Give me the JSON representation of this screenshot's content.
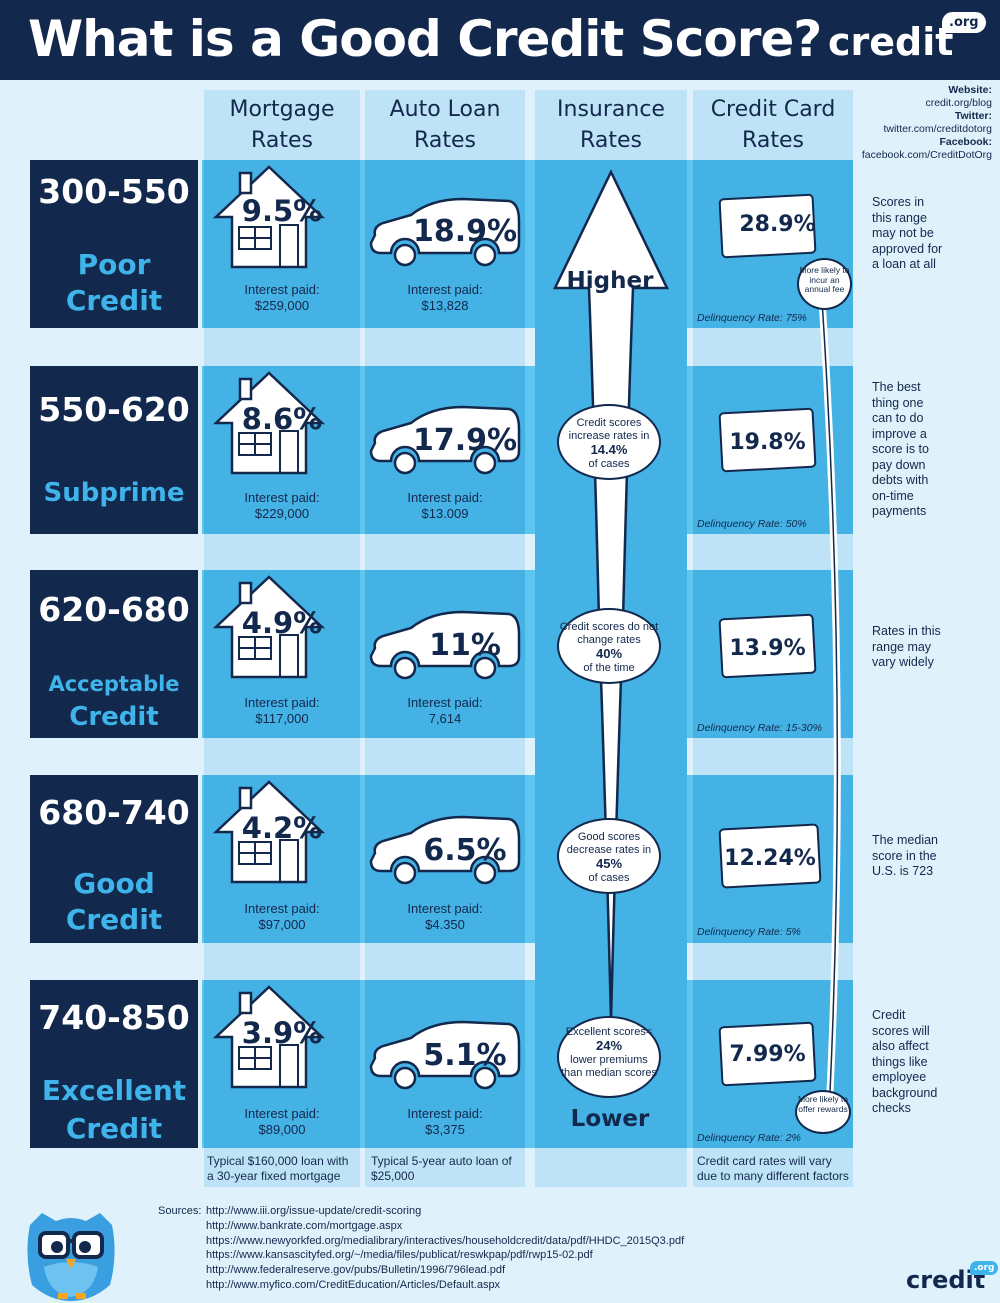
{
  "title": "What is a Good Credit Score?",
  "logo": {
    "word": "credit",
    "tld": ".org"
  },
  "social": {
    "website_label": "Website:",
    "website": "credit.org/blog",
    "twitter_label": "Twitter:",
    "twitter": "twitter.com/creditdotorg",
    "facebook_label": "Facebook:",
    "facebook": "facebook.com/CreditDotOrg"
  },
  "columns": [
    {
      "line1": "Mortgage",
      "line2": "Rates"
    },
    {
      "line1": "Auto Loan",
      "line2": "Rates"
    },
    {
      "line1": "Insurance",
      "line2": "Rates"
    },
    {
      "line1": "Credit Card",
      "line2": "Rates"
    }
  ],
  "tiers": [
    {
      "range": "300-550",
      "label1": "Poor",
      "label2": "Credit",
      "mortgage": "9.5%",
      "mortgage_paid_label": "Interest paid:",
      "mortgage_paid": "$259,000",
      "auto": "18.9%",
      "auto_paid_label": "Interest paid:",
      "auto_paid": "$13,828",
      "card": "28.9%",
      "delinquency": "Delinquency Rate: 75%",
      "note": "Scores in this range may not be approved for a loan at all"
    },
    {
      "range": "550-620",
      "label1": "",
      "label2": "Subprime",
      "mortgage": "8.6%",
      "mortgage_paid_label": "Interest paid:",
      "mortgage_paid": "$229,000",
      "auto": "17.9%",
      "auto_paid_label": "Interest paid:",
      "auto_paid": "$13.009",
      "card": "19.8%",
      "delinquency": "Delinquency Rate: 50%",
      "note": "The best thing one can to do improve a score is to pay down debts with on-time payments"
    },
    {
      "range": "620-680",
      "label1": "Acceptable",
      "label2": "Credit",
      "mortgage": "4.9%",
      "mortgage_paid_label": "Interest paid:",
      "mortgage_paid": "$117,000",
      "auto": "11%",
      "auto_paid_label": "Interest paid:",
      "auto_paid": "7,614",
      "card": "13.9%",
      "delinquency": "Delinquency Rate: 15-30%",
      "note": "Rates in this range may vary widely"
    },
    {
      "range": "680-740",
      "label1": "Good",
      "label2": "Credit",
      "mortgage": "4.2%",
      "mortgage_paid_label": "Interest paid:",
      "mortgage_paid": "$97,000",
      "auto": "6.5%",
      "auto_paid_label": "Interest paid:",
      "auto_paid": "$4.350",
      "card": "12.24%",
      "delinquency": "Delinquency Rate: 5%",
      "note": "The median score in the U.S. is 723"
    },
    {
      "range": "740-850",
      "label1": "Excellent",
      "label2": "Credit",
      "mortgage": "3.9%",
      "mortgage_paid_label": "Interest paid:",
      "mortgage_paid": "$89,000",
      "auto": "5.1%",
      "auto_paid_label": "Interest paid:",
      "auto_paid": "$3,375",
      "card": "7.99%",
      "delinquency": "Delinquency Rate: 2%",
      "note": "Credit scores will also affect things like employee background checks"
    }
  ],
  "insurance": {
    "higher": "Higher",
    "lower": "Lower",
    "bubbles": [
      {
        "pre": "Credit scores increase rates in",
        "value": "14.4%",
        "post": "of cases"
      },
      {
        "pre": "Credit scores do not change rates",
        "value": "40%",
        "post": "of the time"
      },
      {
        "pre": "Good scores decrease rates in",
        "value": "45%",
        "post": "of cases"
      },
      {
        "pre": "Excellent scores=",
        "value": "24%",
        "post": "lower premiums than median scores"
      }
    ]
  },
  "card_bubbles": {
    "top": "More likely to incur an annual fee",
    "bottom": "More likely to offer rewards"
  },
  "footnotes": {
    "mortgage": "Typical $160,000 loan with a 30-year fixed mortgage",
    "auto": "Typical 5-year auto loan of $25,000",
    "card": "Credit card rates will vary due to many different factors"
  },
  "sources_label": "Sources:",
  "sources": [
    "http://www.iii.org/issue-update/credit-scoring",
    "http://www.bankrate.com/mortgage.aspx",
    "https://www.newyorkfed.org/medialibrary/interactives/householdcredit/data/pdf/HHDC_2015Q3.pdf",
    "https://www.kansascityfed.org/~/media/files/publicat/reswkpap/pdf/rwp15-02.pdf",
    "http://www.federalreserve.gov/pubs/Bulletin/1996/796lead.pdf",
    "http://www.myfico.com/CreditEducation/Articles/Default.aspx"
  ],
  "colors": {
    "navy": "#13284d",
    "row": "#5ec5ef",
    "cell": "#44b2e4",
    "column": "#bfe3f6",
    "page": "#dff1fb",
    "accent": "#3fb4ea"
  }
}
